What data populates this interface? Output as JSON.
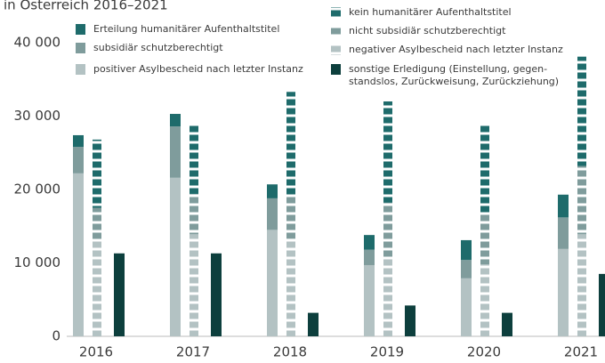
{
  "chart_data": {
    "type": "grouped-stacked-bar",
    "title": "in Österreich 2016–2021",
    "categories": [
      "2016",
      "2017",
      "2018",
      "2019",
      "2020",
      "2021"
    ],
    "ylim": [
      0,
      40000
    ],
    "yticks": [
      0,
      {
        "value": 10000,
        "label": "10 000"
      },
      {
        "value": 20000,
        "label": "20 000"
      },
      {
        "value": 30000,
        "label": "30 000"
      },
      {
        "value": 40000,
        "label": "40 000"
      }
    ],
    "grid": false,
    "series": [
      {
        "name": "positiver Asylbescheid nach letzter Instanz",
        "color": "#b3c2c3",
        "stack": "positive",
        "dashed": false,
        "values": [
          22200,
          21600,
          14500,
          9700,
          7900,
          11900
        ]
      },
      {
        "name": "subsidiär schutzberechtigt",
        "color": "#7f9c9c",
        "stack": "positive",
        "dashed": false,
        "values": [
          3600,
          7000,
          4300,
          2100,
          2500,
          4300
        ]
      },
      {
        "name": "Erteilung humanitärer Aufenthaltstitel",
        "color": "#1e6b6b",
        "stack": "positive",
        "dashed": false,
        "values": [
          1600,
          1700,
          1900,
          2000,
          2700,
          3100
        ]
      },
      {
        "name": "negativer Asylbescheid nach letzter Instanz",
        "color": "#b3c2c3",
        "stack": "negative",
        "dashed": true,
        "values": [
          13100,
          13900,
          13300,
          10700,
          9800,
          13900
        ]
      },
      {
        "name": "nicht subsidiär schutzberechtigt",
        "color": "#7f9c9c",
        "stack": "negative",
        "dashed": true,
        "values": [
          4400,
          5500,
          5900,
          7500,
          6800,
          9300
        ]
      },
      {
        "name": "kein humanitärer Aufenthaltstitel",
        "color": "#1e6b6b",
        "stack": "negative",
        "dashed": true,
        "values": [
          9300,
          9300,
          14100,
          13800,
          12400,
          14900
        ]
      },
      {
        "name": "sonstige Erledigung (Einstellung, gegen-\nstandslos, Zurückweisung, Zurückziehung)",
        "color": "#0d3f3d",
        "stack": "other",
        "dashed": false,
        "values": [
          11300,
          11300,
          3200,
          4200,
          3200,
          8500
        ]
      }
    ]
  }
}
